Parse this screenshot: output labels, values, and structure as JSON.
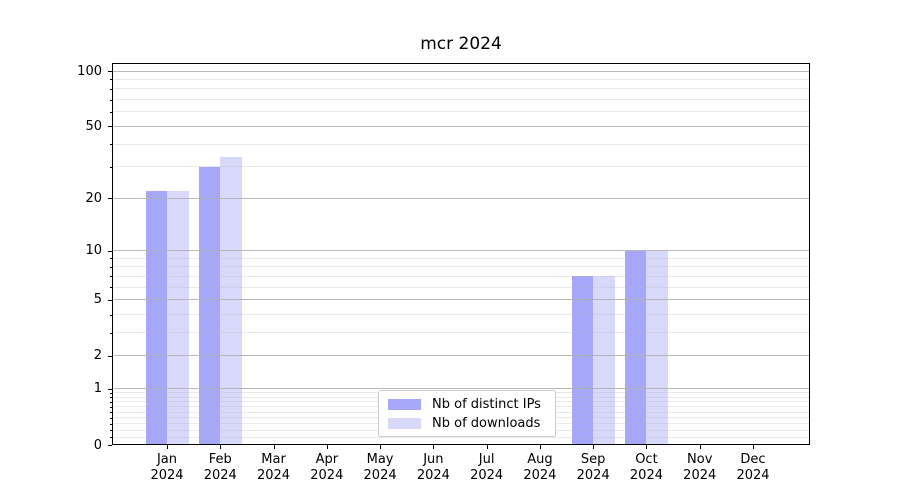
{
  "title": "mcr 2024",
  "chart_data": {
    "type": "bar",
    "title": "mcr 2024",
    "categories": [
      "Jan",
      "Feb",
      "Mar",
      "Apr",
      "May",
      "Jun",
      "Jul",
      "Aug",
      "Sep",
      "Oct",
      "Nov",
      "Dec"
    ],
    "category_year": "2024",
    "series": [
      {
        "name": "Nb of distinct IPs",
        "color": "#a7a7fa",
        "values": [
          22,
          30,
          0,
          0,
          0,
          0,
          0,
          0,
          7,
          10,
          0,
          0
        ]
      },
      {
        "name": "Nb of downloads",
        "color": "#d8d8fa",
        "values": [
          22,
          34,
          0,
          0,
          0,
          0,
          0,
          0,
          7,
          10,
          0,
          0
        ]
      }
    ],
    "yscale": "log1p",
    "yticks": [
      0,
      1,
      2,
      5,
      10,
      20,
      50,
      100
    ],
    "minor_yticks": [
      0.1,
      0.2,
      0.3,
      0.4,
      0.5,
      0.6,
      0.7,
      0.8,
      0.9,
      3,
      4,
      6,
      7,
      8,
      9,
      30,
      40,
      60,
      70,
      80,
      90
    ],
    "ylim": [
      0,
      110
    ],
    "grid": true,
    "legend_position": "lower center",
    "colors": {
      "grid_major": "#b0b0b0",
      "grid_minor": "#e8e8e8",
      "spine": "#000000",
      "text": "#000000",
      "background": "#ffffff"
    }
  }
}
